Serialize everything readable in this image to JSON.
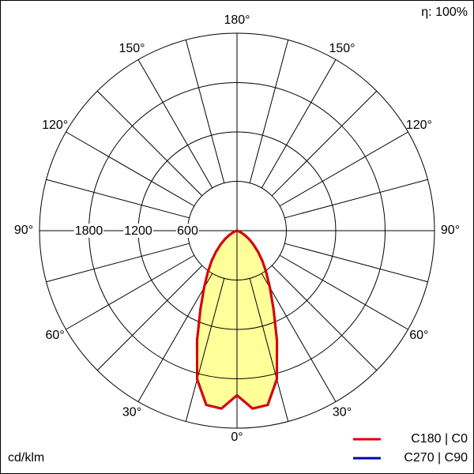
{
  "chart_data": {
    "type": "polar",
    "annotation": "η: 100%",
    "unit_label": "cd/klm",
    "angles": [
      0,
      5,
      10,
      15,
      20,
      25,
      30,
      35,
      40,
      45,
      50,
      55,
      60,
      65,
      70,
      75,
      80,
      85,
      90
    ],
    "series": [
      {
        "name": "C270 | C90",
        "color": "#0000aa",
        "values": [
          2000,
          2170,
          2150,
          1870,
          1420,
          1050,
          800,
          620,
          480,
          360,
          260,
          180,
          110,
          60,
          25,
          10,
          0,
          0,
          0
        ]
      },
      {
        "name": "C180 | C0",
        "color": "#dd0000",
        "values": [
          2000,
          2170,
          2150,
          1870,
          1420,
          1050,
          800,
          620,
          480,
          360,
          260,
          180,
          110,
          60,
          25,
          10,
          0,
          0,
          0
        ]
      }
    ],
    "fill_color": "#ffff99",
    "rlim": [
      0,
      2400
    ],
    "rticks": [
      600,
      1200,
      1800
    ],
    "angle_grid": [
      0,
      15,
      30,
      45,
      60,
      75,
      90,
      105,
      120,
      135,
      150,
      165,
      180
    ],
    "angle_ticks": [
      {
        "value": 0,
        "label": "0°"
      },
      {
        "value": 30,
        "label": "30°"
      },
      {
        "value": 60,
        "label": "60°"
      },
      {
        "value": 90,
        "label": "90°"
      },
      {
        "value": 120,
        "label": "120°"
      },
      {
        "value": 150,
        "label": "150°"
      },
      {
        "value": 180,
        "label": "180°"
      }
    ]
  }
}
